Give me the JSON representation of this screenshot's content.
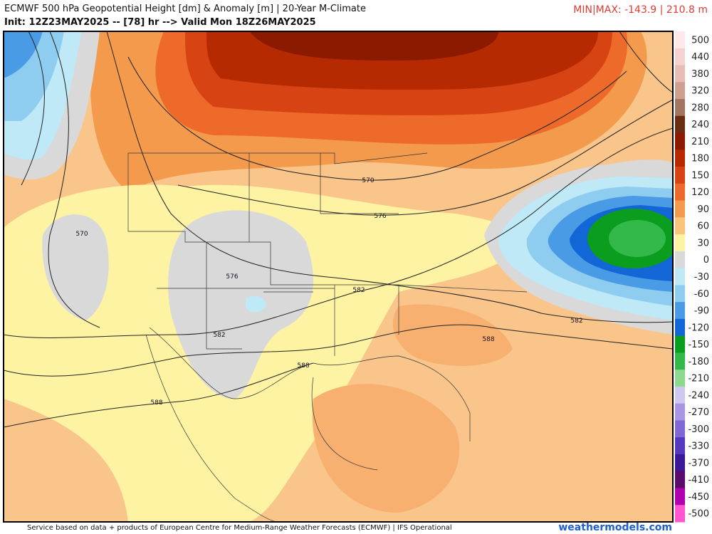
{
  "header": {
    "title": "ECMWF 500 hPa Geopotential Height [dm] & Anomaly [m] | 20-Year M-Climate",
    "subtitle": "Init: 12Z23MAY2025 -- [78] hr --> Valid Mon 18Z26MAY2025",
    "minmax": "MIN|MAX: -143.9 | 210.8 m"
  },
  "colorbar": {
    "labels": [
      500,
      440,
      380,
      320,
      280,
      240,
      210,
      180,
      150,
      120,
      90,
      60,
      30,
      0,
      -30,
      -60,
      -90,
      -120,
      -150,
      -180,
      -210,
      -240,
      -270,
      -300,
      -330,
      -370,
      -410,
      -450,
      -500
    ]
  },
  "map": {
    "contour_labels": [
      "570",
      "576",
      "570",
      "576",
      "582",
      "582",
      "582",
      "588",
      "588",
      "588"
    ]
  },
  "footer": {
    "credit": "Service based on data + products of European Centre for Medium-Range Weather Forecasts (ECMWF) | IFS Operational",
    "site": "weathermodels.com"
  }
}
